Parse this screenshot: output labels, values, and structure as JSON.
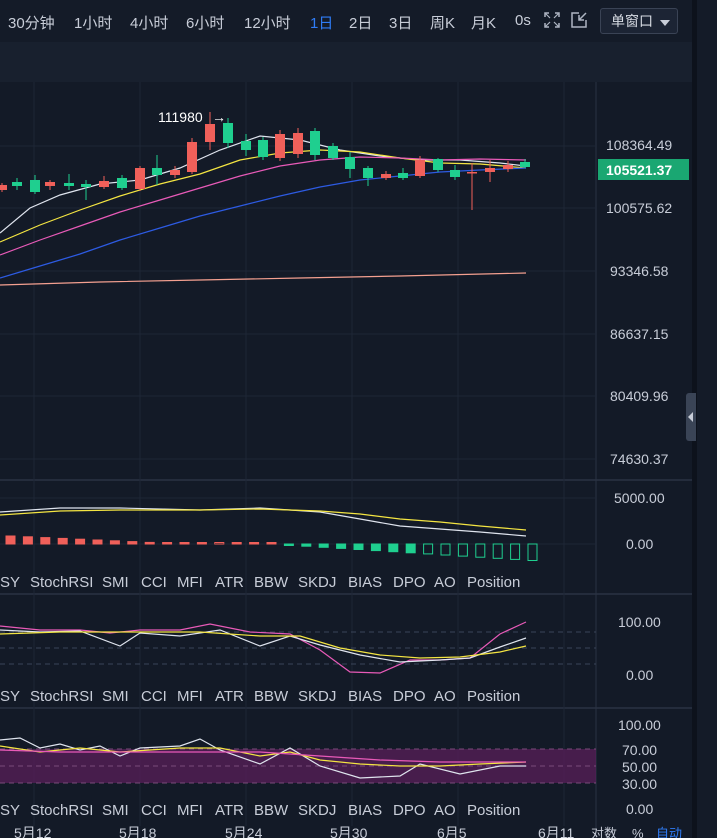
{
  "toolbar": {
    "timeframes": [
      "30分钟",
      "1小时",
      "4小时",
      "6小时",
      "12小时",
      "1日",
      "2日",
      "3日",
      "周K",
      "月K",
      "0s"
    ],
    "active_timeframe": "1日",
    "window_mode": "单窗口"
  },
  "icons": [
    "expand-icon",
    "exit-fullscreen-icon",
    "chevron-down-icon",
    "collapse-panel-icon"
  ],
  "colors": {
    "up": "#f0605a",
    "down": "#1fcf8f",
    "ma_white": "#dfe4ee",
    "ma_yellow": "#f4e542",
    "ma_pink": "#e85ab8",
    "ma_blue": "#2d5be3",
    "ma_salmon": "#f4a090",
    "price_label_bg": "#1aa772",
    "active": "#2f7cf6"
  },
  "main_chart": {
    "annotation": "111980",
    "price_axis": [
      "108364.49",
      "100575.62",
      "93346.58",
      "86637.15",
      "80409.96",
      "74630.37"
    ],
    "current_price": "105521.37"
  },
  "macd_panel": {
    "axis": [
      "5000.00",
      "0.00"
    ]
  },
  "kdj_panel": {
    "axis": [
      "100.00",
      "0.00"
    ]
  },
  "rsi_panel": {
    "axis": [
      "100.00",
      "70.00",
      "50.00",
      "30.00",
      "0.00"
    ]
  },
  "indicator_tabs": [
    "SY",
    "StochRSI",
    "SMI",
    "CCI",
    "MFI",
    "ATR",
    "BBW",
    "SKDJ",
    "BIAS",
    "DPO",
    "AO",
    "Position"
  ],
  "date_axis": [
    "5月12",
    "5月18",
    "5月24",
    "5月30",
    "6月5",
    "6月11"
  ],
  "scale_options": [
    "对数",
    "%",
    "自动"
  ]
}
